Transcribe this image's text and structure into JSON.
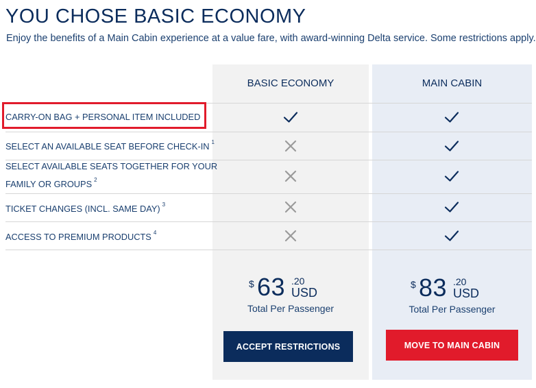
{
  "header": {
    "title": "YOU CHOSE BASIC ECONOMY",
    "subtitle": "Enjoy the benefits of a Main Cabin experience at a value fare, with award-winning Delta service. Some restrictions apply."
  },
  "columns": {
    "basic_economy": "BASIC ECONOMY",
    "main_cabin": "MAIN CABIN"
  },
  "features": [
    {
      "label": "CARRY-ON BAG + PERSONAL ITEM INCLUDED",
      "sup": "",
      "basic": "check",
      "main": "check"
    },
    {
      "label": "SELECT AN AVAILABLE SEAT BEFORE CHECK-IN",
      "sup": "1",
      "basic": "cross",
      "main": "check"
    },
    {
      "label_line1": "SELECT AVAILABLE SEATS TOGETHER FOR YOUR",
      "label_line2": "FAMILY OR GROUPS",
      "sup": "2",
      "basic": "cross",
      "main": "check"
    },
    {
      "label": "TICKET CHANGES (INCL. SAME DAY)",
      "sup": "3",
      "basic": "cross",
      "main": "check"
    },
    {
      "label": "ACCESS TO PREMIUM PRODUCTS",
      "sup": "4",
      "basic": "cross",
      "main": "check"
    }
  ],
  "pricing": {
    "basic_economy": {
      "currency_symbol": "$",
      "amount": "63",
      "cents": ".20",
      "unit": "USD",
      "per": "Total Per Passenger"
    },
    "main_cabin": {
      "currency_symbol": "$",
      "amount": "83",
      "cents": ".20",
      "unit": "USD",
      "per": "Total Per Passenger"
    }
  },
  "buttons": {
    "accept": "ACCEPT RESTRICTIONS",
    "move": "MOVE TO MAIN CABIN"
  },
  "colors": {
    "navy": "#0b2c5c",
    "red": "#e11b2b",
    "cross_gray": "#9a9a9a"
  }
}
